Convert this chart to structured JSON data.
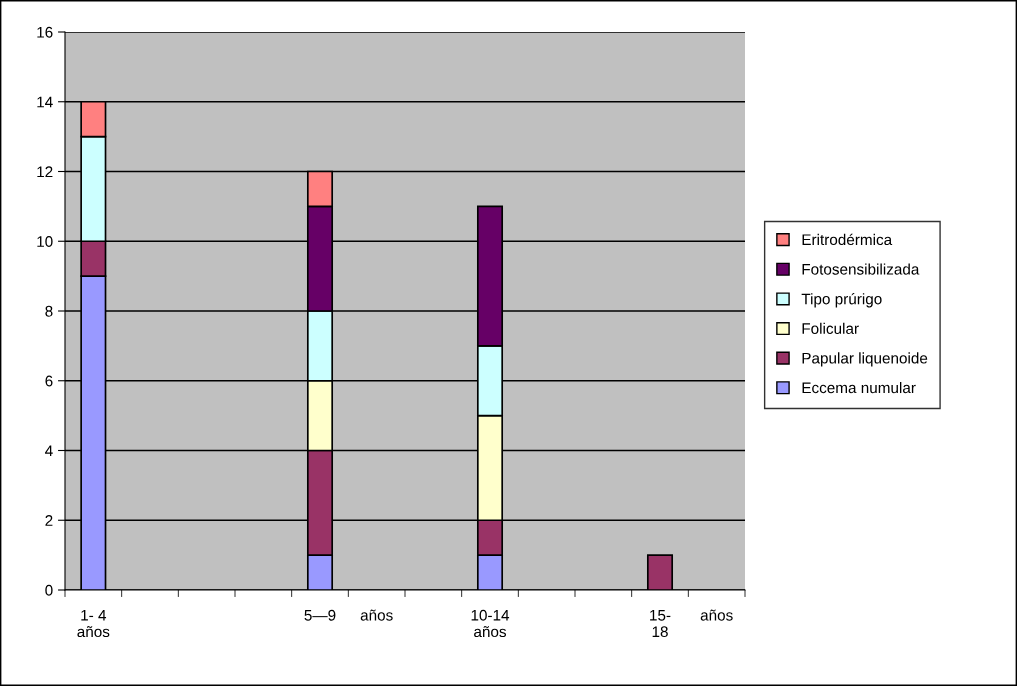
{
  "chart_data": {
    "type": "bar",
    "stacked": true,
    "categories": [
      "1- 4\naños",
      null,
      null,
      null,
      "5—9",
      "años",
      null,
      "10-14\naños",
      null,
      null,
      "15-\n18",
      "años"
    ],
    "series": [
      {
        "name": "Eccema numular",
        "color": "#9999ff",
        "values": [
          9,
          null,
          null,
          null,
          1,
          null,
          null,
          1,
          null,
          null,
          null,
          null
        ]
      },
      {
        "name": "Papular liquenoide",
        "color": "#993366",
        "values": [
          1,
          null,
          null,
          null,
          3,
          null,
          null,
          1,
          null,
          null,
          1,
          null
        ]
      },
      {
        "name": "Folicular",
        "color": "#ffffcc",
        "values": [
          null,
          null,
          null,
          null,
          2,
          null,
          null,
          3,
          null,
          null,
          null,
          null
        ]
      },
      {
        "name": "Tipo prúrigo",
        "color": "#ccffff",
        "values": [
          3,
          null,
          null,
          null,
          2,
          null,
          null,
          2,
          null,
          null,
          null,
          null
        ]
      },
      {
        "name": "Fotosensibilizada",
        "color": "#660066",
        "values": [
          null,
          null,
          null,
          null,
          3,
          null,
          null,
          4,
          null,
          null,
          null,
          null
        ]
      },
      {
        "name": "Eritrodérmica",
        "color": "#ff8080",
        "values": [
          1,
          null,
          null,
          null,
          1,
          null,
          null,
          null,
          null,
          null,
          null,
          null
        ]
      }
    ],
    "ylim": [
      0,
      16
    ],
    "yticks": [
      0,
      2,
      4,
      6,
      8,
      10,
      12,
      14,
      16
    ],
    "grid": "y",
    "legend": "right"
  }
}
